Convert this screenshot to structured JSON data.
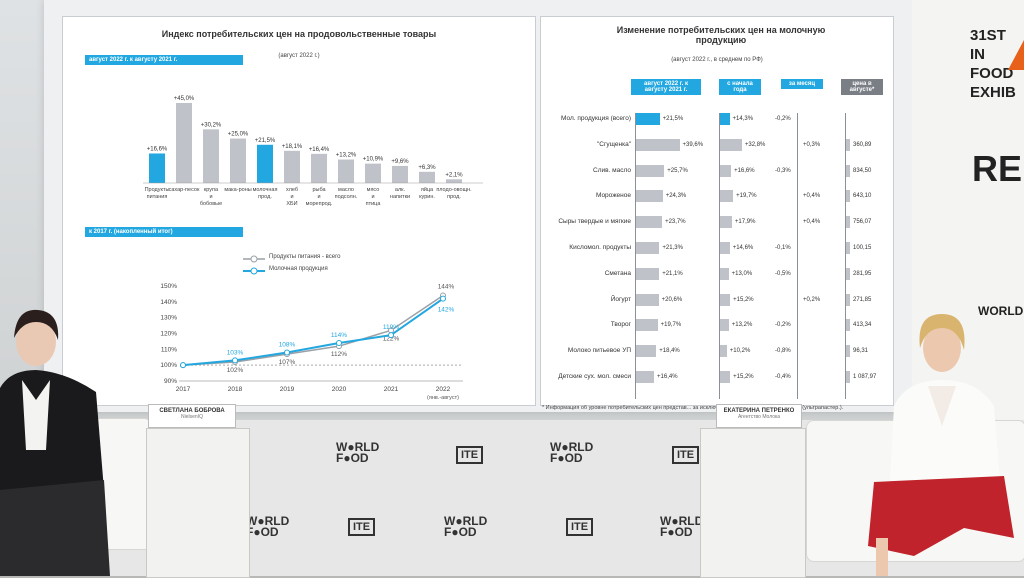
{
  "left_slide": {
    "title": "Индекс потребительских цен на продовольственные товары",
    "subtitle": "(август 2022 г.)",
    "tag1": "август 2022 г. к августу 2021 г.",
    "bars": [
      {
        "label": "Продукты питания",
        "value": "+16,6%",
        "blue": true
      },
      {
        "label": "сахар-песок",
        "value": "+45,0%",
        "blue": false
      },
      {
        "label": "крупа и бобовые",
        "value": "+30,2%",
        "blue": false
      },
      {
        "label": "мака-роны",
        "value": "+25,0%",
        "blue": false
      },
      {
        "label": "молочная прод.",
        "value": "+21,5%",
        "blue": true
      },
      {
        "label": "хлеб и ХБИ",
        "value": "+18,1%",
        "blue": false
      },
      {
        "label": "рыба и морепрод.",
        "value": "+16,4%",
        "blue": false
      },
      {
        "label": "масло подсолн.",
        "value": "+13,2%",
        "blue": false
      },
      {
        "label": "мясо и птица",
        "value": "+10,9%",
        "blue": false
      },
      {
        "label": "алк. напитки",
        "value": "+9,6%",
        "blue": false
      },
      {
        "label": "яйца курин.",
        "value": "+6,3%",
        "blue": false
      },
      {
        "label": "плодо-овощн. прод.",
        "value": "+2,1%",
        "blue": false
      }
    ],
    "tag2": "к 2017 г. (накопленный итог)",
    "legend_total": "Продукты питания - всего",
    "legend_dairy": "Молочная продукция",
    "chart_data": {
      "type": "line",
      "x": [
        "2017",
        "2018",
        "2019",
        "2020",
        "2021",
        "2022"
      ],
      "ylim": [
        90,
        150
      ],
      "yticks": [
        "150%",
        "140%",
        "130%",
        "120%",
        "110%",
        "100%",
        "90%"
      ],
      "series": [
        {
          "name": "Продукты питания - всего",
          "values": [
            100,
            102,
            107,
            112,
            122,
            144
          ],
          "labels": [
            "",
            "102%",
            "107%",
            "112%",
            "122%",
            "144%"
          ]
        },
        {
          "name": "Молочная продукция",
          "values": [
            100,
            103,
            108,
            114,
            119,
            142
          ],
          "labels": [
            "",
            "103%",
            "108%",
            "114%",
            "119%",
            "142%"
          ]
        }
      ],
      "xnote": "(янв.-август)"
    }
  },
  "right_slide": {
    "title": "Изменение потребительских цен на молочную продукцию",
    "subtitle": "(август 2022 г., в среднем по РФ)",
    "col1": "август 2022 г. к августу 2021 г.",
    "col2": "с начала года",
    "col3": "за месяц",
    "col4": "цена в августе*",
    "rows": [
      {
        "name": "Мол. продукция (всего)",
        "c1": "+21,5%",
        "c2": "+14,3%",
        "c3": "-0,2%",
        "c4": ""
      },
      {
        "name": "\"Сгущенка\"",
        "c1": "+39,6%",
        "c2": "+32,8%",
        "c3": "+0,3%",
        "c4": "360,89"
      },
      {
        "name": "Слив. масло",
        "c1": "+25,7%",
        "c2": "+16,6%",
        "c3": "-0,3%",
        "c4": "834,50"
      },
      {
        "name": "Мороженое",
        "c1": "+24,3%",
        "c2": "+19,7%",
        "c3": "+0,4%",
        "c4": "643,10"
      },
      {
        "name": "Сыры твердые и мягкие",
        "c1": "+23,7%",
        "c2": "+17,9%",
        "c3": "+0,4%",
        "c4": "756,07"
      },
      {
        "name": "Кисломол. продукты",
        "c1": "+21,3%",
        "c2": "+14,6%",
        "c3": "-0,1%",
        "c4": "100,15"
      },
      {
        "name": "Сметана",
        "c1": "+21,1%",
        "c2": "+13,0%",
        "c3": "-0,5%",
        "c4": "281,95"
      },
      {
        "name": "Йогурт",
        "c1": "+20,6%",
        "c2": "+15,2%",
        "c3": "+0,2%",
        "c4": "271,85"
      },
      {
        "name": "Творог",
        "c1": "+19,7%",
        "c2": "+13,2%",
        "c3": "-0,2%",
        "c4": "413,34"
      },
      {
        "name": "Молоко питьевое УП",
        "c1": "+18,4%",
        "c2": "+10,2%",
        "c3": "-0,8%",
        "c4": "96,31"
      },
      {
        "name": "Детские сух. мол. смеси",
        "c1": "+16,4%",
        "c2": "+15,2%",
        "c3": "-0,4%",
        "c4": "1 087,97"
      }
    ],
    "footnote": "* Информация об уровне потребительских цен представ... за исключением питьевое молоко – руб./л (ультрапастер.)."
  },
  "stage": {
    "speaker_left_name": "СВЕТЛАНА БОБРОВА",
    "speaker_left_org": "NielsenIQ",
    "speaker_right_name": "ЕКАТЕРИНА ПЕТРЕНКО",
    "speaker_right_org": "Агентство Молока",
    "brand_world": "W●RLD",
    "brand_food": "F●OD",
    "brand_moscow": "MOSCOW",
    "brand_ite": "ITE",
    "right_banner": "31ST IN FOOD EXHIB",
    "right_re": "RE",
    "right_world": "WORLD"
  },
  "colors": {
    "accent": "#22a7e0",
    "bar_gray": "#bfc3c9",
    "skirt": "#c0232b"
  }
}
